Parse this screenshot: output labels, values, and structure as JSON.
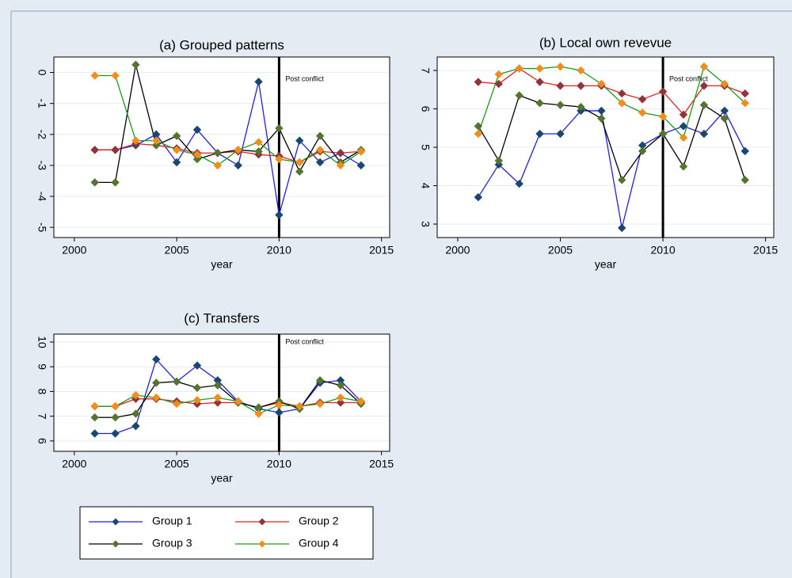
{
  "chart_data": [
    {
      "type": "line",
      "title": "(a) Grouped patterns",
      "x_label": "year",
      "x": [
        2001,
        2002,
        2003,
        2004,
        2005,
        2006,
        2007,
        2008,
        2009,
        2010,
        2011,
        2012,
        2013,
        2014
      ],
      "xlim": [
        1999,
        2015.4
      ],
      "xticks": [
        2000,
        2005,
        2010,
        2015
      ],
      "ylim": [
        -5.33,
        0.5
      ],
      "yticks": [
        0,
        -1,
        -2,
        -3,
        -4,
        -5
      ],
      "grid": true,
      "vline": 2010,
      "annotation": "Post conflict",
      "series": [
        {
          "name": "Group 1",
          "color": "#1f1fe0",
          "marker_color": "#1a476f",
          "values": [
            -2.5,
            -2.5,
            -2.35,
            -2.0,
            -2.9,
            -1.85,
            -2.6,
            -3.0,
            -0.3,
            -4.6,
            -2.2,
            -2.9,
            -2.6,
            -3.0
          ]
        },
        {
          "name": "Group 2",
          "color": "#e02020",
          "marker_color": "#90353b",
          "values": [
            -2.5,
            -2.5,
            -2.3,
            -2.35,
            -2.45,
            -2.6,
            -2.6,
            -2.55,
            -2.65,
            -2.7,
            -2.9,
            -2.55,
            -2.6,
            -2.55
          ]
        },
        {
          "name": "Group 3",
          "color": "#000000",
          "marker_color": "#55752f",
          "values": [
            -3.55,
            -3.55,
            0.25,
            -2.35,
            -2.05,
            -2.8,
            -2.6,
            -2.5,
            -2.55,
            -1.8,
            -3.2,
            -2.05,
            -2.9,
            -2.5
          ]
        },
        {
          "name": "Group 4",
          "color": "#1a9a1a",
          "marker_color": "#f28c1a",
          "values": [
            -0.1,
            -0.1,
            -2.2,
            -2.2,
            -2.5,
            -2.65,
            -3.0,
            -2.5,
            -2.25,
            -2.8,
            -2.9,
            -2.5,
            -3.0,
            -2.55
          ]
        }
      ]
    },
    {
      "type": "line",
      "title": "(b) Local own revevue",
      "x_label": "year",
      "x": [
        2001,
        2002,
        2003,
        2004,
        2005,
        2006,
        2007,
        2008,
        2009,
        2010,
        2011,
        2012,
        2013,
        2014
      ],
      "xlim": [
        1999,
        2015.4
      ],
      "xticks": [
        2000,
        2005,
        2010,
        2015
      ],
      "ylim": [
        2.65,
        7.35
      ],
      "yticks": [
        3,
        4,
        5,
        6,
        7
      ],
      "grid": true,
      "vline": 2010,
      "annotation": "Post conflict",
      "series": [
        {
          "color": "#1f1fe0",
          "marker_color": "#1a476f",
          "values": [
            3.7,
            4.55,
            4.05,
            5.35,
            5.35,
            5.95,
            5.95,
            2.9,
            5.05,
            5.35,
            5.55,
            5.35,
            5.95,
            4.9
          ]
        },
        {
          "color": "#e02020",
          "marker_color": "#90353b",
          "values": [
            6.7,
            6.65,
            7.05,
            6.7,
            6.6,
            6.6,
            6.6,
            6.4,
            6.25,
            6.45,
            5.85,
            6.6,
            6.6,
            6.4
          ]
        },
        {
          "color": "#000000",
          "marker_color": "#55752f",
          "values": [
            5.55,
            4.65,
            6.35,
            6.15,
            6.1,
            6.05,
            5.75,
            4.15,
            4.9,
            5.35,
            4.5,
            6.1,
            5.75,
            4.15
          ]
        },
        {
          "color": "#1a9a1a",
          "marker_color": "#f28c1a",
          "values": [
            5.35,
            6.9,
            7.05,
            7.05,
            7.1,
            7.0,
            6.65,
            6.15,
            5.9,
            5.8,
            5.25,
            7.1,
            6.65,
            6.15
          ]
        }
      ]
    },
    {
      "type": "line",
      "title": "(c) Transfers",
      "x_label": "year",
      "x": [
        2001,
        2002,
        2003,
        2004,
        2005,
        2006,
        2007,
        2008,
        2009,
        2010,
        2011,
        2012,
        2013,
        2014
      ],
      "xlim": [
        1999,
        2015.4
      ],
      "xticks": [
        2000,
        2005,
        2010,
        2015
      ],
      "ylim": [
        5.58,
        10.32
      ],
      "yticks": [
        6,
        7,
        8,
        9,
        10
      ],
      "grid": true,
      "vline": 2010,
      "annotation": "Post conflict",
      "series": [
        {
          "color": "#1f1fe0",
          "marker_color": "#1a476f",
          "values": [
            6.3,
            6.3,
            6.6,
            9.3,
            8.4,
            9.05,
            8.45,
            7.6,
            7.3,
            7.15,
            7.3,
            8.35,
            8.45,
            7.6
          ]
        },
        {
          "color": "#e02020",
          "marker_color": "#90353b",
          "values": [
            7.4,
            7.4,
            7.7,
            7.7,
            7.6,
            7.5,
            7.55,
            7.55,
            7.35,
            7.55,
            7.4,
            7.55,
            7.55,
            7.55
          ]
        },
        {
          "color": "#000000",
          "marker_color": "#55752f",
          "values": [
            6.95,
            6.95,
            7.1,
            8.35,
            8.4,
            8.15,
            8.25,
            7.55,
            7.35,
            7.6,
            7.3,
            8.45,
            8.25,
            7.5
          ]
        },
        {
          "color": "#1a9a1a",
          "marker_color": "#f28c1a",
          "values": [
            7.4,
            7.4,
            7.85,
            7.75,
            7.5,
            7.65,
            7.75,
            7.6,
            7.1,
            7.45,
            7.4,
            7.5,
            7.75,
            7.6
          ]
        }
      ]
    }
  ]
}
